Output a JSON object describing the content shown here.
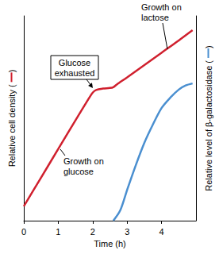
{
  "chart_data": {
    "type": "line",
    "x_label": "Time (h)",
    "y_label": "Relative cell density ( )",
    "y2_label": "Relative level of β-galactosidase ( )",
    "xlim": [
      0,
      5
    ],
    "xticks": [
      0,
      1,
      2,
      3,
      4
    ],
    "ylim": [
      0,
      1
    ],
    "y2lim": [
      0,
      1
    ],
    "tick_labels": "x",
    "grid": false,
    "annotations": [
      "Glucose exhausted",
      "Growth on glucose",
      "Growth on lactose"
    ],
    "series": [
      {
        "color": "#d0202e",
        "axis": "y",
        "x": [
          0,
          0.5,
          1,
          1.5,
          1.9,
          2.0,
          2.1,
          2.3,
          2.5,
          2.6,
          2.7,
          3.0,
          3.5,
          4.0,
          4.5,
          4.9
        ],
        "values": [
          0.07,
          0.21,
          0.35,
          0.49,
          0.6,
          0.625,
          0.638,
          0.645,
          0.648,
          0.652,
          0.665,
          0.7,
          0.76,
          0.82,
          0.88,
          0.93
        ]
      },
      {
        "color": "#4a8fd0",
        "axis": "y2",
        "x": [
          2.6,
          2.8,
          3.0,
          3.25,
          3.5,
          3.75,
          4.0,
          4.25,
          4.5,
          4.7,
          4.9
        ],
        "values": [
          0,
          0.05,
          0.15,
          0.27,
          0.38,
          0.47,
          0.55,
          0.6,
          0.64,
          0.66,
          0.67
        ]
      }
    ]
  }
}
